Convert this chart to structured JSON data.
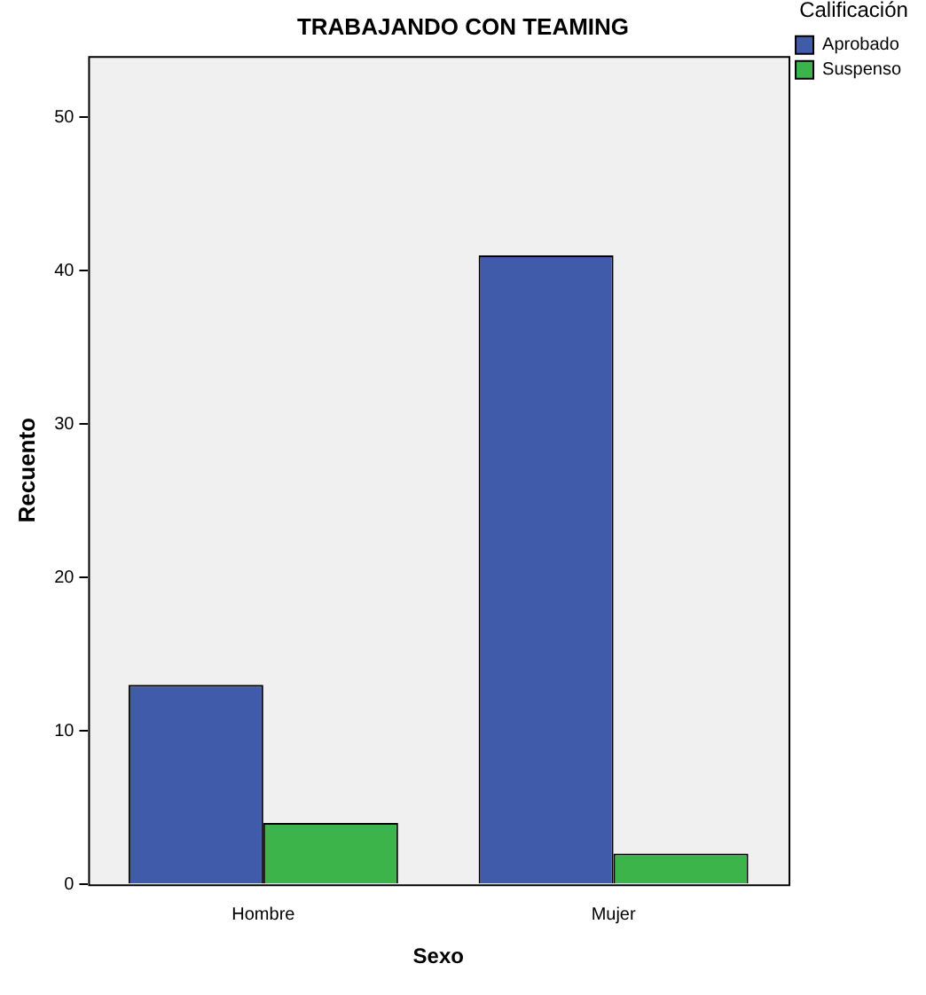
{
  "chart_data": {
    "type": "bar",
    "title": "TRABAJANDO CON TEAMING",
    "xlabel": "Sexo",
    "ylabel": "Recuento",
    "legend_title": "Calificación",
    "categories": [
      "Hombre",
      "Mujer"
    ],
    "series": [
      {
        "name": "Aprobado",
        "color": "#3f5ba9",
        "values": [
          13,
          41
        ]
      },
      {
        "name": "Suspenso",
        "color": "#3cb44a",
        "values": [
          4,
          2
        ]
      }
    ],
    "ylim": [
      0,
      54
    ],
    "yticks": [
      0,
      10,
      20,
      30,
      40,
      50
    ],
    "grid": false,
    "legend": "top right"
  }
}
